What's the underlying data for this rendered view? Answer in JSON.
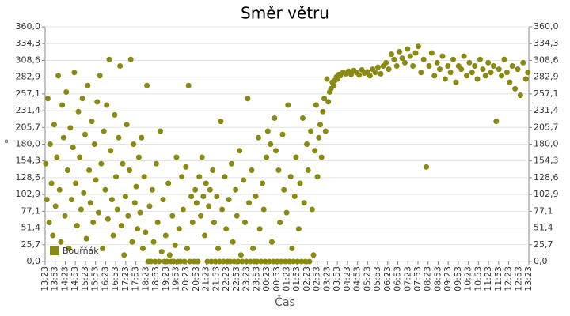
{
  "chart_data": {
    "type": "scatter",
    "title": "Směr větru",
    "x_label": "Čas",
    "y_label": "°",
    "color": "#8a8a12",
    "grid": true,
    "legend": "bottom-left",
    "series": [
      {
        "name": "Bouřňák",
        "color": "#8a8a12",
        "x": [
          "13:25",
          "13:28",
          "13:31",
          "13:35",
          "13:38",
          "13:42",
          "13:46",
          "13:50",
          "13:54",
          "13:58",
          "14:02",
          "14:06",
          "14:10",
          "14:14",
          "14:18",
          "14:22",
          "14:26",
          "14:30",
          "14:34",
          "14:38",
          "14:42",
          "14:46",
          "14:50",
          "14:54",
          "14:58",
          "15:02",
          "15:06",
          "15:10",
          "15:14",
          "15:18",
          "15:22",
          "15:26",
          "15:30",
          "15:34",
          "15:38",
          "15:42",
          "15:46",
          "15:50",
          "15:54",
          "15:58",
          "16:02",
          "16:06",
          "16:10",
          "16:14",
          "16:18",
          "16:22",
          "16:26",
          "16:30",
          "16:34",
          "16:38",
          "16:42",
          "16:46",
          "16:50",
          "16:54",
          "16:58",
          "17:02",
          "17:06",
          "17:10",
          "17:14",
          "17:18",
          "17:22",
          "17:26",
          "17:30",
          "17:34",
          "17:38",
          "17:42",
          "17:46",
          "17:50",
          "17:54",
          "17:58",
          "18:02",
          "18:06",
          "18:10",
          "18:14",
          "18:18",
          "18:22",
          "18:26",
          "18:30",
          "18:34",
          "18:38",
          "18:42",
          "18:46",
          "18:50",
          "18:54",
          "18:58",
          "19:02",
          "19:06",
          "19:10",
          "19:14",
          "19:18",
          "19:22",
          "19:26",
          "19:30",
          "19:34",
          "19:38",
          "19:42",
          "19:46",
          "19:50",
          "19:54",
          "19:58",
          "20:02",
          "20:06",
          "20:10",
          "20:14",
          "20:18",
          "20:22",
          "20:26",
          "20:30",
          "20:34",
          "20:38",
          "20:42",
          "20:46",
          "20:50",
          "20:54",
          "20:58",
          "21:02",
          "21:06",
          "21:10",
          "21:14",
          "21:18",
          "21:22",
          "21:26",
          "21:30",
          "21:34",
          "21:38",
          "21:42",
          "21:46",
          "21:50",
          "21:54",
          "21:58",
          "22:02",
          "22:06",
          "22:10",
          "22:14",
          "22:18",
          "22:22",
          "22:26",
          "22:30",
          "22:34",
          "22:38",
          "22:42",
          "22:46",
          "22:50",
          "22:54",
          "22:58",
          "23:02",
          "23:06",
          "23:10",
          "23:14",
          "23:18",
          "23:22",
          "23:26",
          "23:30",
          "23:34",
          "23:38",
          "23:42",
          "23:46",
          "23:50",
          "23:54",
          "23:58",
          "00:02",
          "00:06",
          "00:10",
          "00:14",
          "00:18",
          "00:22",
          "00:26",
          "00:30",
          "00:34",
          "00:38",
          "00:42",
          "00:46",
          "00:50",
          "00:54",
          "00:58",
          "01:02",
          "01:06",
          "01:10",
          "01:14",
          "01:18",
          "01:22",
          "01:26",
          "01:30",
          "01:34",
          "01:38",
          "01:42",
          "01:46",
          "01:50",
          "01:54",
          "01:58",
          "02:02",
          "02:06",
          "02:10",
          "02:14",
          "02:18",
          "02:22",
          "02:26",
          "02:30",
          "02:34",
          "02:38",
          "02:42",
          "02:46",
          "02:50",
          "02:54",
          "02:58",
          "03:02",
          "03:06",
          "03:10",
          "03:14",
          "03:18",
          "03:22",
          "03:26",
          "03:30",
          "03:34",
          "03:38",
          "03:42",
          "03:46",
          "03:50",
          "03:54",
          "03:58",
          "04:02",
          "04:10",
          "04:18",
          "04:26",
          "04:34",
          "04:42",
          "04:50",
          "04:58",
          "05:06",
          "05:14",
          "05:22",
          "05:30",
          "05:38",
          "05:46",
          "05:54",
          "06:02",
          "06:10",
          "06:18",
          "06:26",
          "06:34",
          "06:42",
          "06:50",
          "06:58",
          "07:06",
          "07:14",
          "07:22",
          "07:30",
          "07:38",
          "07:46",
          "07:54",
          "08:02",
          "08:10",
          "08:18",
          "08:26",
          "08:34",
          "08:42",
          "08:50",
          "08:58",
          "09:06",
          "09:14",
          "09:22",
          "09:30",
          "09:38",
          "09:46",
          "09:54",
          "10:02",
          "10:10",
          "10:18",
          "10:26",
          "10:34",
          "10:42",
          "10:50",
          "10:58",
          "11:06",
          "11:14",
          "11:22",
          "11:30",
          "11:38",
          "11:46",
          "11:54",
          "12:02",
          "12:10",
          "12:18",
          "12:26",
          "12:34",
          "12:42",
          "12:50",
          "12:58",
          "13:06",
          "13:14",
          "13:20"
        ],
        "values": [
          150,
          95,
          250,
          60,
          180,
          120,
          40,
          210,
          85,
          160,
          285,
          110,
          30,
          240,
          190,
          70,
          260,
          140,
          20,
          205,
          95,
          175,
          290,
          120,
          55,
          230,
          160,
          80,
          250,
          105,
          195,
          35,
          270,
          140,
          90,
          215,
          60,
          180,
          125,
          245,
          75,
          285,
          150,
          20,
          200,
          110,
          240,
          65,
          310,
          170,
          95,
          40,
          225,
          130,
          80,
          190,
          300,
          55,
          150,
          10,
          100,
          210,
          70,
          140,
          310,
          30,
          180,
          90,
          115,
          50,
          160,
          75,
          190,
          20,
          130,
          45,
          270,
          0,
          85,
          0,
          110,
          30,
          0,
          150,
          60,
          0,
          200,
          15,
          95,
          0,
          40,
          0,
          120,
          10,
          0,
          70,
          0,
          25,
          160,
          0,
          50,
          0,
          130,
          80,
          0,
          145,
          20,
          270,
          0,
          100,
          60,
          0,
          110,
          90,
          0,
          130,
          70,
          160,
          100,
          40,
          120,
          0,
          85,
          110,
          0,
          140,
          60,
          0,
          100,
          20,
          0,
          215,
          80,
          0,
          130,
          50,
          0,
          95,
          0,
          150,
          30,
          0,
          110,
          70,
          0,
          170,
          10,
          0,
          125,
          60,
          0,
          250,
          90,
          0,
          140,
          20,
          0,
          100,
          0,
          190,
          50,
          0,
          120,
          80,
          0,
          160,
          200,
          0,
          180,
          30,
          0,
          220,
          170,
          0,
          140,
          60,
          0,
          195,
          110,
          0,
          75,
          240,
          0,
          130,
          20,
          0,
          100,
          160,
          0,
          50,
          120,
          0,
          220,
          90,
          0,
          180,
          140,
          0,
          200,
          80,
          10,
          170,
          240,
          130,
          190,
          210,
          160,
          230,
          250,
          200,
          280,
          245,
          260,
          265,
          275,
          270,
          278,
          283,
          280,
          287,
          285,
          290,
          288,
          292,
          287,
          293,
          290,
          286,
          294,
          289,
          291,
          285,
          295,
          290,
          298,
          288,
          300,
          305,
          295,
          318,
          310,
          300,
          322,
          312,
          305,
          326,
          315,
          300,
          320,
          330,
          290,
          310,
          145,
          300,
          320,
          285,
          305,
          295,
          315,
          280,
          300,
          290,
          310,
          275,
          300,
          295,
          315,
          285,
          305,
          290,
          300,
          280,
          310,
          295,
          285,
          305,
          290,
          300,
          215,
          295,
          285,
          310,
          290,
          275,
          300,
          265,
          295,
          255,
          305,
          280,
          290
        ]
      }
    ],
    "xlim": [
      "13:23",
      "13:23"
    ],
    "xticks": [
      "13:23",
      "13:53",
      "14:23",
      "14:53",
      "15:23",
      "15:53",
      "16:23",
      "16:53",
      "17:23",
      "17:53",
      "18:23",
      "18:53",
      "19:23",
      "19:53",
      "20:23",
      "20:53",
      "21:23",
      "21:53",
      "22:23",
      "22:53",
      "23:23",
      "23:53",
      "00:23",
      "00:53",
      "01:23",
      "01:53",
      "02:23",
      "02:53",
      "03:23",
      "03:53",
      "04:23",
      "04:53",
      "05:23",
      "05:53",
      "06:23",
      "06:53",
      "07:23",
      "07:53",
      "08:23",
      "08:53",
      "09:23",
      "09:53",
      "10:23",
      "10:53",
      "11:23",
      "11:53",
      "12:23",
      "12:53",
      "13:23"
    ],
    "ylim": [
      0,
      360
    ],
    "yticks": [
      {
        "value": 0,
        "label": "0,0"
      },
      {
        "value": 25.7,
        "label": "25,7"
      },
      {
        "value": 51.4,
        "label": "51,4"
      },
      {
        "value": 77.1,
        "label": "77,1"
      },
      {
        "value": 102.9,
        "label": "102,9"
      },
      {
        "value": 128.6,
        "label": "128,6"
      },
      {
        "value": 154.3,
        "label": "154,3"
      },
      {
        "value": 180,
        "label": "180,0"
      },
      {
        "value": 205.7,
        "label": "205,7"
      },
      {
        "value": 231.4,
        "label": "231,4"
      },
      {
        "value": 257.1,
        "label": "257,1"
      },
      {
        "value": 282.9,
        "label": "282,9"
      },
      {
        "value": 308.6,
        "label": "308,6"
      },
      {
        "value": 334.3,
        "label": "334,3"
      },
      {
        "value": 360,
        "label": "360,0"
      }
    ]
  }
}
